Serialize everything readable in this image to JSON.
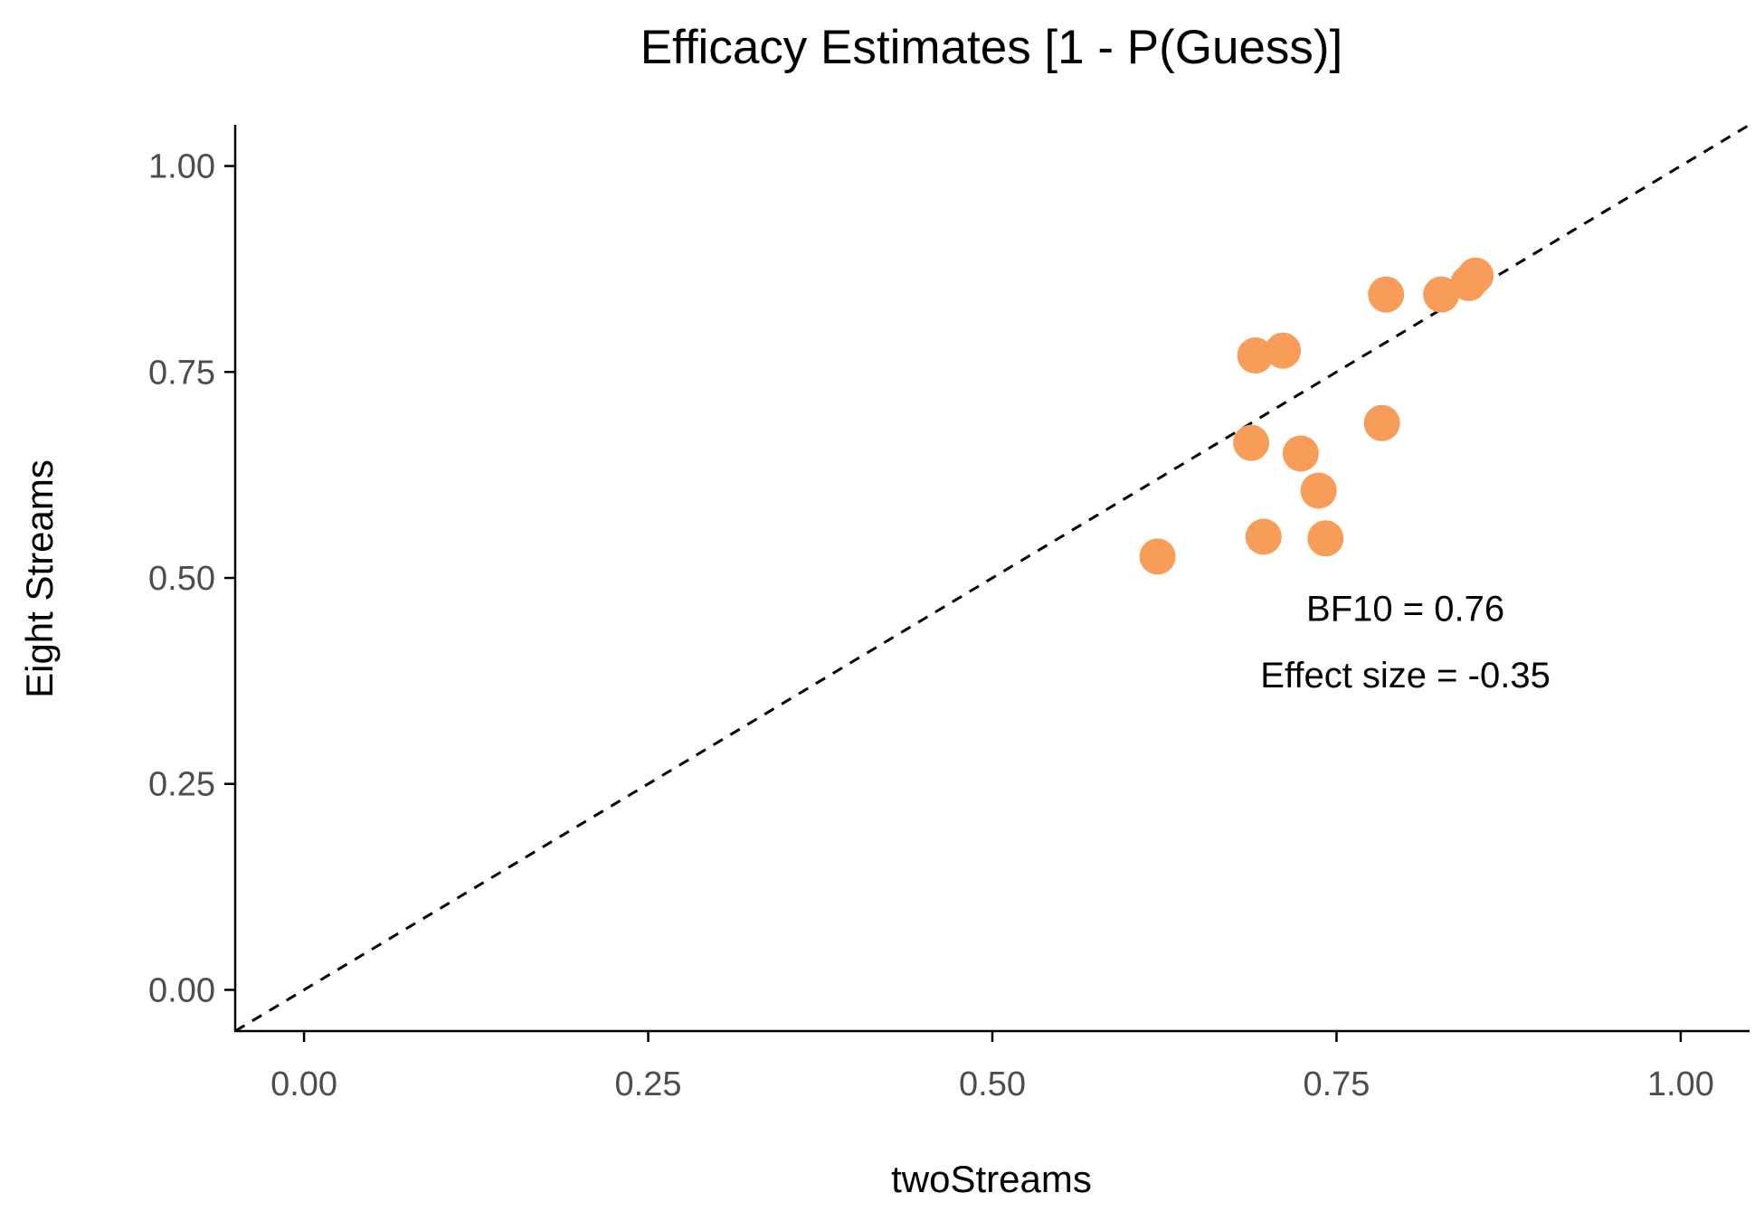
{
  "chart_data": {
    "type": "scatter",
    "title": "Efficacy Estimates [1 - P(Guess)]",
    "xlabel": "twoStreams",
    "ylabel": "Eight Streams",
    "xlim": [
      -0.05,
      1.05
    ],
    "ylim": [
      -0.05,
      1.05
    ],
    "x_ticks": [
      0.0,
      0.25,
      0.5,
      0.75,
      1.0
    ],
    "x_tick_labels": [
      "0.00",
      "0.25",
      "0.50",
      "0.75",
      "1.00"
    ],
    "y_ticks": [
      0.0,
      0.25,
      0.5,
      0.75,
      1.0
    ],
    "y_tick_labels": [
      "0.00",
      "0.25",
      "0.50",
      "0.75",
      "1.00"
    ],
    "grid": false,
    "reference_line": {
      "style": "dashed",
      "slope": 1,
      "intercept": 0
    },
    "point_color": "#f89d59",
    "points": [
      {
        "x": 0.62,
        "y": 0.526
      },
      {
        "x": 0.688,
        "y": 0.664
      },
      {
        "x": 0.691,
        "y": 0.77
      },
      {
        "x": 0.697,
        "y": 0.55
      },
      {
        "x": 0.711,
        "y": 0.776
      },
      {
        "x": 0.724,
        "y": 0.651
      },
      {
        "x": 0.737,
        "y": 0.606
      },
      {
        "x": 0.742,
        "y": 0.548
      },
      {
        "x": 0.783,
        "y": 0.688
      },
      {
        "x": 0.786,
        "y": 0.844
      },
      {
        "x": 0.826,
        "y": 0.844
      },
      {
        "x": 0.846,
        "y": 0.858
      },
      {
        "x": 0.851,
        "y": 0.867
      }
    ],
    "annotations": [
      {
        "text": "BF10 = 0.76",
        "x": 0.8,
        "y": 0.448
      },
      {
        "text": "Effect size = -0.35",
        "x": 0.8,
        "y": 0.367
      }
    ]
  }
}
